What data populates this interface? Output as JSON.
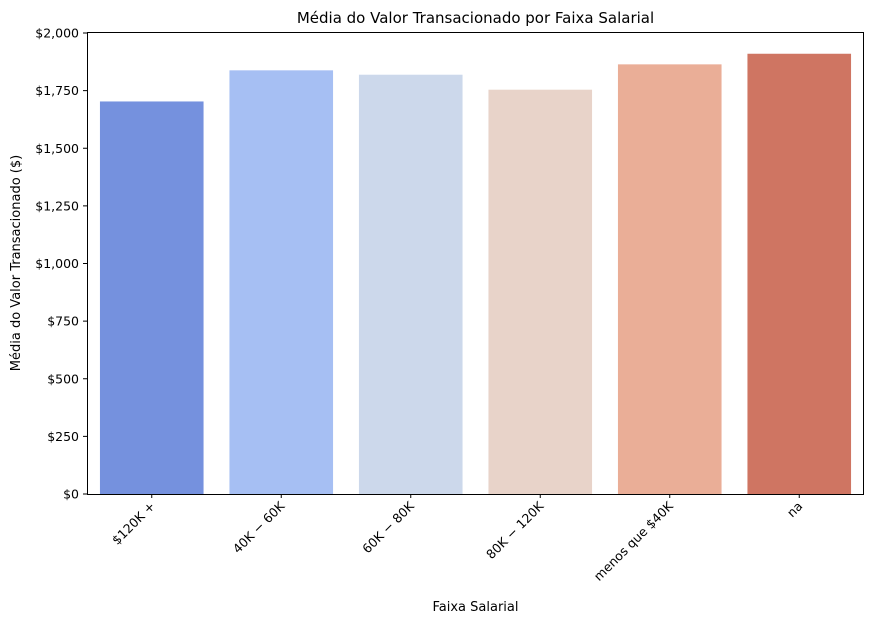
{
  "chart_data": {
    "type": "bar",
    "title": "Média do Valor Transacionado por Faixa Salarial",
    "xlabel": "Faixa Salarial",
    "ylabel": "Média do Valor Transacionado ($)",
    "categories": [
      "$120K +",
      "$40K - $60K",
      "$60K - $80K",
      "$80K - $120K",
      "menos que $40K",
      "na"
    ],
    "category_tick_labels": [
      "$120K +",
      "40K − 60K",
      "60K − 80K",
      "80K − 120K",
      "menos que $40K",
      "na"
    ],
    "values": [
      1703,
      1838,
      1819,
      1754,
      1864,
      1910
    ],
    "ylim": [
      0,
      2000
    ],
    "y_ticks": [
      0,
      250,
      500,
      750,
      1000,
      1250,
      1500,
      1750,
      2000
    ],
    "y_tick_labels": [
      "$0",
      "$250",
      "$500",
      "$750",
      "$1,000",
      "$1,250",
      "$1,500",
      "$1,750",
      "$2,000"
    ],
    "grid": false,
    "legend": "none",
    "colors": [
      "#7591de",
      "#a6bff3",
      "#ccd8eb",
      "#e8d3c9",
      "#eaae97",
      "#cf7562"
    ]
  }
}
